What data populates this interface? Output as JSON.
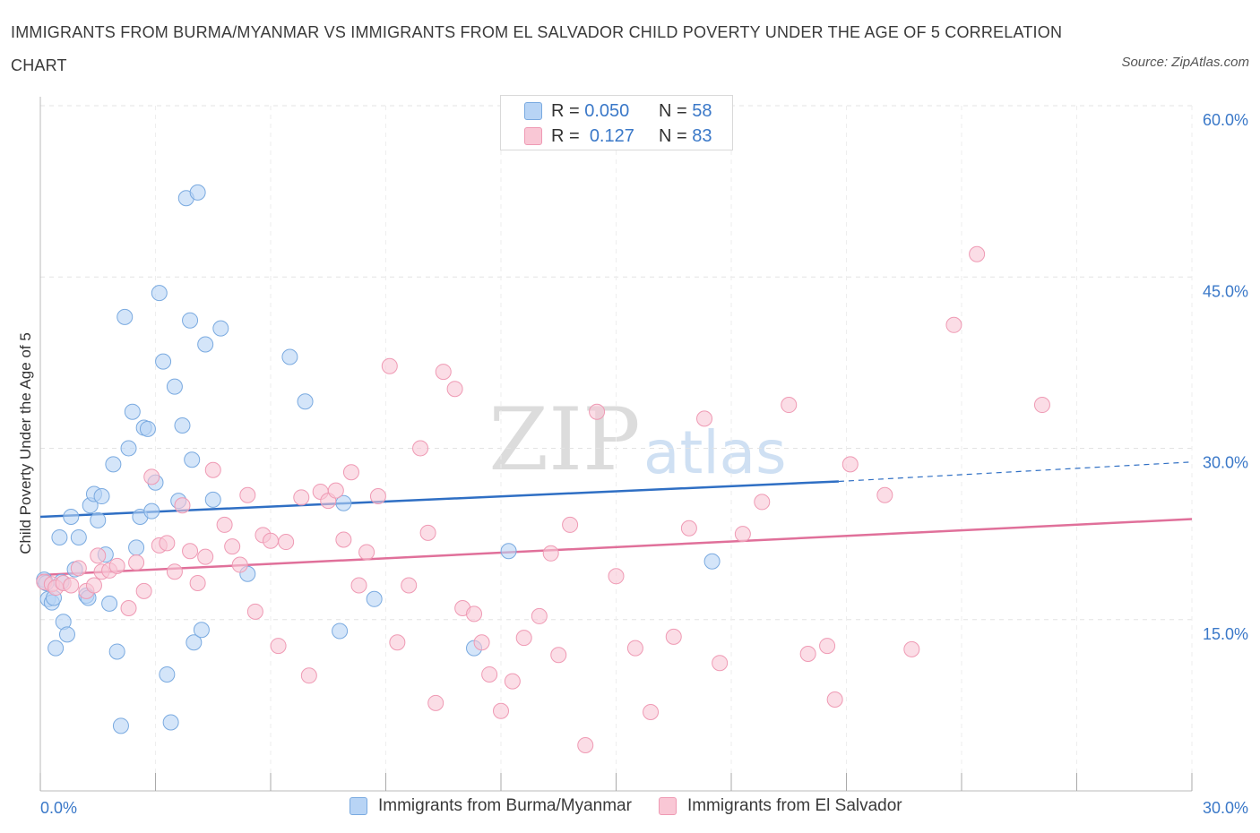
{
  "title": "IMMIGRANTS FROM BURMA/MYANMAR VS IMMIGRANTS FROM EL SALVADOR CHILD POVERTY UNDER THE AGE OF 5 CORRELATION CHART",
  "source": "Source: ZipAtlas.com",
  "watermark": {
    "zip": "ZIP",
    "atlas": "atlas"
  },
  "legend_top": {
    "r_label": "R =",
    "n_label": "N =",
    "rows": [
      {
        "r": "0.050",
        "n": "58",
        "fill": "#b8d4f5",
        "stroke": "#7aaae0"
      },
      {
        "r": "0.127",
        "n": "83",
        "fill": "#f9c7d5",
        "stroke": "#ef9ab4"
      }
    ]
  },
  "chart_data": {
    "type": "scatter",
    "title": "IMMIGRANTS FROM BURMA/MYANMAR VS IMMIGRANTS FROM EL SALVADOR CHILD POVERTY UNDER THE AGE OF 5 CORRELATION CHART",
    "xlabel": "",
    "ylabel": "Child Poverty Under the Age of 5",
    "xlim": [
      0,
      30
    ],
    "ylim": [
      0,
      60
    ],
    "x_tick_labels": [
      "0.0%",
      "30.0%"
    ],
    "y_ticks": [
      15,
      30,
      45,
      60
    ],
    "y_tick_labels": [
      "15.0%",
      "30.0%",
      "45.0%",
      "60.0%"
    ],
    "grid": true,
    "legend_position": "bottom",
    "series": [
      {
        "name": "Immigrants from Burma/Myanmar",
        "color": "#7aaae0",
        "fill": "#b8d4f5",
        "line_color": "#2f6fc4",
        "trend": {
          "x": [
            0,
            20.8
          ],
          "y": [
            24.0,
            27.1
          ]
        },
        "trend_extension": {
          "x": [
            20.8,
            30
          ],
          "y": [
            27.1,
            28.8
          ]
        },
        "points": [
          [
            0.1,
            18.5
          ],
          [
            0.2,
            16.8
          ],
          [
            0.3,
            16.5
          ],
          [
            0.4,
            12.5
          ],
          [
            0.5,
            22.2
          ],
          [
            0.6,
            14.8
          ],
          [
            0.7,
            13.7
          ],
          [
            0.8,
            24.0
          ],
          [
            0.9,
            19.4
          ],
          [
            1.0,
            22.2
          ],
          [
            1.2,
            17.1
          ],
          [
            1.3,
            25.0
          ],
          [
            1.4,
            26.0
          ],
          [
            1.5,
            23.7
          ],
          [
            1.6,
            25.8
          ],
          [
            1.7,
            20.7
          ],
          [
            1.8,
            16.4
          ],
          [
            1.9,
            28.6
          ],
          [
            2.0,
            12.2
          ],
          [
            2.1,
            5.7
          ],
          [
            2.2,
            41.5
          ],
          [
            2.3,
            30.0
          ],
          [
            2.4,
            33.2
          ],
          [
            2.5,
            21.3
          ],
          [
            2.6,
            24.0
          ],
          [
            2.7,
            31.8
          ],
          [
            2.8,
            31.7
          ],
          [
            2.9,
            24.5
          ],
          [
            3.0,
            27.0
          ],
          [
            3.1,
            43.6
          ],
          [
            3.2,
            37.6
          ],
          [
            3.3,
            10.2
          ],
          [
            3.4,
            6.0
          ],
          [
            3.5,
            35.4
          ],
          [
            3.6,
            25.4
          ],
          [
            3.7,
            32.0
          ],
          [
            3.8,
            51.9
          ],
          [
            3.9,
            41.2
          ],
          [
            3.95,
            29.0
          ],
          [
            4.0,
            13.0
          ],
          [
            4.1,
            52.4
          ],
          [
            4.2,
            14.1
          ],
          [
            4.3,
            39.1
          ],
          [
            4.5,
            25.5
          ],
          [
            4.7,
            40.5
          ],
          [
            5.4,
            19.0
          ],
          [
            6.5,
            38.0
          ],
          [
            6.9,
            34.1
          ],
          [
            7.8,
            14.0
          ],
          [
            7.9,
            25.2
          ],
          [
            8.7,
            16.8
          ],
          [
            11.3,
            12.5
          ],
          [
            12.2,
            21.0
          ],
          [
            17.5,
            20.1
          ],
          [
            0.15,
            18.2
          ],
          [
            0.35,
            16.9
          ],
          [
            0.55,
            18.3
          ],
          [
            1.25,
            16.9
          ]
        ]
      },
      {
        "name": "Immigrants from El Salvador",
        "color": "#ef9ab4",
        "fill": "#f9c7d5",
        "line_color": "#e0709a",
        "trend": {
          "x": [
            0,
            30
          ],
          "y": [
            18.9,
            23.8
          ]
        },
        "points": [
          [
            0.1,
            18.3
          ],
          [
            0.3,
            18.1
          ],
          [
            0.4,
            17.8
          ],
          [
            0.6,
            18.2
          ],
          [
            0.8,
            18.0
          ],
          [
            1.0,
            19.5
          ],
          [
            1.2,
            17.5
          ],
          [
            1.4,
            18.0
          ],
          [
            1.5,
            20.6
          ],
          [
            1.6,
            19.2
          ],
          [
            1.8,
            19.3
          ],
          [
            2.0,
            19.7
          ],
          [
            2.3,
            16.0
          ],
          [
            2.5,
            20.0
          ],
          [
            2.7,
            17.5
          ],
          [
            2.9,
            27.5
          ],
          [
            3.1,
            21.5
          ],
          [
            3.3,
            21.7
          ],
          [
            3.5,
            19.2
          ],
          [
            3.7,
            25.0
          ],
          [
            3.9,
            21.0
          ],
          [
            4.1,
            18.2
          ],
          [
            4.3,
            20.5
          ],
          [
            4.5,
            28.1
          ],
          [
            4.8,
            23.3
          ],
          [
            5.0,
            21.4
          ],
          [
            5.2,
            19.8
          ],
          [
            5.4,
            25.9
          ],
          [
            5.6,
            15.7
          ],
          [
            5.8,
            22.4
          ],
          [
            6.0,
            21.9
          ],
          [
            6.2,
            12.7
          ],
          [
            6.4,
            21.8
          ],
          [
            6.8,
            25.7
          ],
          [
            7.0,
            10.1
          ],
          [
            7.3,
            26.2
          ],
          [
            7.5,
            25.4
          ],
          [
            7.7,
            26.3
          ],
          [
            7.9,
            22.0
          ],
          [
            8.1,
            27.9
          ],
          [
            8.3,
            18.0
          ],
          [
            8.5,
            20.9
          ],
          [
            8.8,
            25.8
          ],
          [
            9.1,
            37.2
          ],
          [
            9.3,
            13.0
          ],
          [
            9.6,
            18.0
          ],
          [
            9.9,
            30.0
          ],
          [
            10.1,
            22.6
          ],
          [
            10.3,
            7.7
          ],
          [
            10.5,
            36.7
          ],
          [
            10.8,
            35.2
          ],
          [
            11.0,
            16.0
          ],
          [
            11.3,
            15.5
          ],
          [
            11.5,
            13.0
          ],
          [
            11.7,
            10.2
          ],
          [
            12.0,
            7.0
          ],
          [
            12.3,
            9.6
          ],
          [
            12.6,
            13.4
          ],
          [
            13.0,
            15.3
          ],
          [
            13.3,
            20.8
          ],
          [
            13.5,
            11.9
          ],
          [
            13.8,
            23.3
          ],
          [
            14.2,
            4.0
          ],
          [
            14.5,
            33.2
          ],
          [
            15.0,
            18.8
          ],
          [
            15.5,
            12.5
          ],
          [
            15.9,
            6.9
          ],
          [
            16.5,
            13.5
          ],
          [
            16.9,
            23.0
          ],
          [
            17.3,
            32.6
          ],
          [
            17.7,
            11.2
          ],
          [
            18.3,
            22.5
          ],
          [
            18.8,
            25.3
          ],
          [
            19.5,
            33.8
          ],
          [
            20.0,
            12.0
          ],
          [
            20.5,
            12.7
          ],
          [
            20.7,
            8.0
          ],
          [
            21.1,
            28.6
          ],
          [
            22.0,
            25.9
          ],
          [
            22.7,
            12.4
          ],
          [
            23.8,
            40.8
          ],
          [
            24.4,
            47.0
          ],
          [
            26.1,
            33.8
          ]
        ]
      }
    ]
  },
  "bottom_legend": {
    "items": [
      {
        "label": "Immigrants from Burma/Myanmar",
        "fill": "#b8d4f5",
        "stroke": "#7aaae0"
      },
      {
        "label": "Immigrants from El Salvador",
        "fill": "#f9c7d5",
        "stroke": "#ef9ab4"
      }
    ]
  }
}
